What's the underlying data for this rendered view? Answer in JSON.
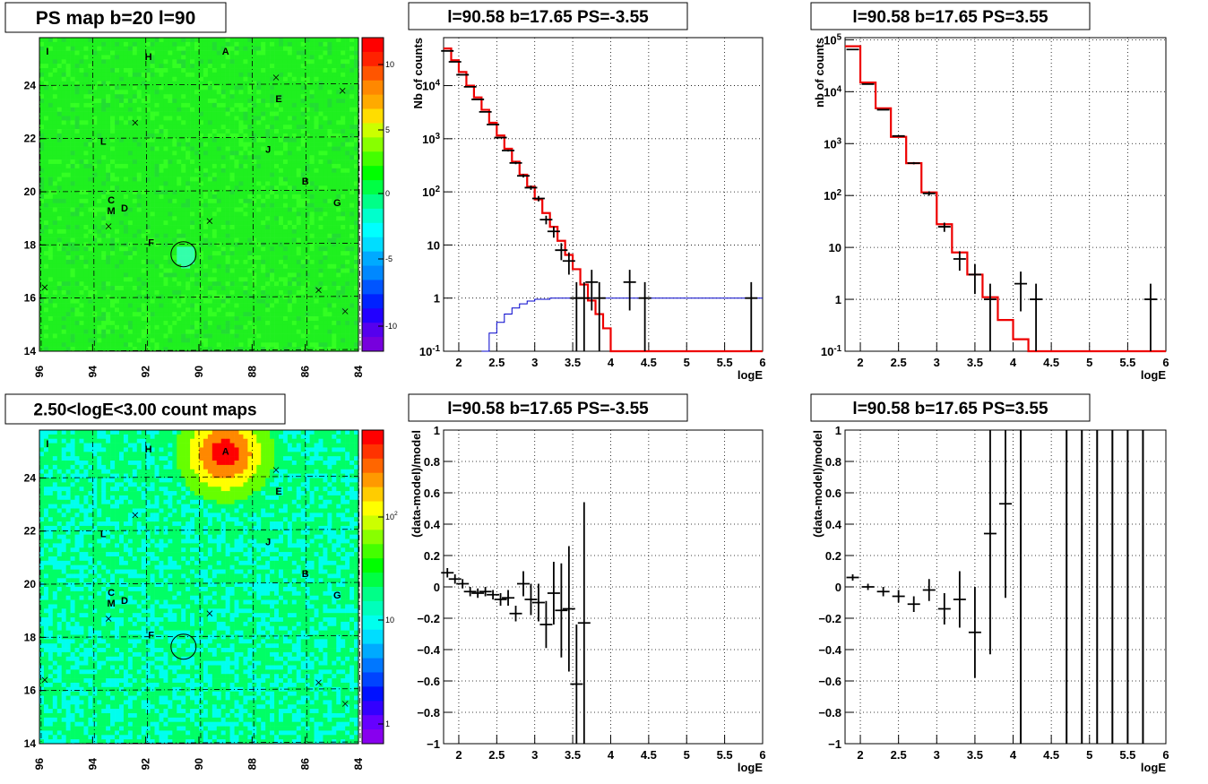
{
  "figure": {
    "panel_titles": [
      "PS map b=20 l=90",
      "l=90.58 b=17.65 PS=-3.55",
      "l=90.58 b=17.65 PS=3.55",
      "2.50<logE<3.00 count maps",
      "l=90.58 b=17.65 PS=-3.55",
      "l=90.58 b=17.65 PS=3.55"
    ]
  },
  "chart_data": [
    {
      "type": "heatmap",
      "title": "PS map b=20 l=90",
      "x_ticks": [
        "96",
        "94",
        "92",
        "90",
        "88",
        "86",
        "84"
      ],
      "y_ticks": [
        "14",
        "16",
        "18",
        "20",
        "22",
        "24"
      ],
      "xlim": [
        96,
        84
      ],
      "ylim": [
        14,
        25.8
      ],
      "colorbar_ticks": [
        "10",
        "5",
        "0",
        "-5",
        "-10"
      ],
      "colorbar_range": [
        -13,
        13
      ],
      "labels": [
        {
          "t": "I",
          "x": 95.7,
          "y": 25.3
        },
        {
          "t": "H",
          "x": 91.9,
          "y": 25.1
        },
        {
          "t": "A",
          "x": 89.0,
          "y": 25.3
        },
        {
          "t": "E",
          "x": 87.0,
          "y": 23.5
        },
        {
          "t": "L",
          "x": 93.6,
          "y": 21.9
        },
        {
          "t": "J",
          "x": 87.4,
          "y": 21.6
        },
        {
          "t": "B",
          "x": 86.0,
          "y": 20.4
        },
        {
          "t": "G",
          "x": 84.8,
          "y": 19.6
        },
        {
          "t": "C",
          "x": 93.3,
          "y": 19.7
        },
        {
          "t": "M",
          "x": 93.3,
          "y": 19.3
        },
        {
          "t": "D",
          "x": 92.8,
          "y": 19.4
        },
        {
          "t": "F",
          "x": 91.8,
          "y": 18.1
        }
      ],
      "crosses": [
        [
          87.1,
          24.3
        ],
        [
          92.4,
          22.6
        ],
        [
          89.6,
          18.9
        ],
        [
          93.4,
          18.7
        ],
        [
          85.5,
          16.3
        ],
        [
          84.5,
          15.5
        ],
        [
          95.8,
          16.4
        ],
        [
          84.6,
          23.8
        ]
      ],
      "circle": {
        "x": 90.58,
        "y": 17.65,
        "r": 0.5
      }
    },
    {
      "type": "line",
      "title": "l=90.58 b=17.65 PS=-3.55",
      "xlabel": "logE",
      "ylabel": "Nb of counts",
      "xlim": [
        1.8,
        6
      ],
      "ylim": [
        0.1,
        80000
      ],
      "log_y": true,
      "x_ticks": [
        "2",
        "2.5",
        "3",
        "3.5",
        "4",
        "4.5",
        "5",
        "5.5",
        "6"
      ],
      "y_ticks": [
        "10^{-1}",
        "1",
        "10",
        "10^{2}",
        "10^{3}",
        "10^{4}"
      ],
      "data_points": [
        {
          "x": 1.85,
          "y": 45000
        },
        {
          "x": 1.95,
          "y": 28000
        },
        {
          "x": 2.05,
          "y": 16000
        },
        {
          "x": 2.15,
          "y": 9500
        },
        {
          "x": 2.25,
          "y": 5500
        },
        {
          "x": 2.35,
          "y": 3200
        },
        {
          "x": 2.45,
          "y": 1850
        },
        {
          "x": 2.55,
          "y": 1050
        },
        {
          "x": 2.65,
          "y": 600
        },
        {
          "x": 2.75,
          "y": 350
        },
        {
          "x": 2.85,
          "y": 200
        },
        {
          "x": 2.95,
          "y": 120
        },
        {
          "x": 3.05,
          "y": 75
        },
        {
          "x": 3.15,
          "y": 30
        },
        {
          "x": 3.25,
          "y": 18
        },
        {
          "x": 3.35,
          "y": 8
        },
        {
          "x": 3.45,
          "y": 5
        },
        {
          "x": 3.55,
          "y": 1
        },
        {
          "x": 3.65,
          "y": 1
        },
        {
          "x": 3.75,
          "y": 2
        },
        {
          "x": 3.85,
          "y": 1
        },
        {
          "x": 4.25,
          "y": 2
        },
        {
          "x": 4.45,
          "y": 1
        },
        {
          "x": 5.85,
          "y": 1
        }
      ],
      "model_red": [
        [
          1.8,
          50000
        ],
        [
          1.9,
          30000
        ],
        [
          2.0,
          18000
        ],
        [
          2.1,
          10000
        ],
        [
          2.2,
          6000
        ],
        [
          2.3,
          3500
        ],
        [
          2.4,
          2000
        ],
        [
          2.5,
          1150
        ],
        [
          2.6,
          650
        ],
        [
          2.7,
          370
        ],
        [
          2.8,
          210
        ],
        [
          2.9,
          125
        ],
        [
          3.0,
          72
        ],
        [
          3.1,
          40
        ],
        [
          3.2,
          22
        ],
        [
          3.3,
          12
        ],
        [
          3.4,
          6.5
        ],
        [
          3.5,
          3.5
        ],
        [
          3.6,
          1.8
        ],
        [
          3.7,
          0.9
        ],
        [
          3.8,
          0.5
        ],
        [
          3.9,
          0.27
        ],
        [
          4.0,
          0.1
        ],
        [
          6.0,
          0.1
        ]
      ],
      "model_blue": [
        [
          2.3,
          0.1
        ],
        [
          2.4,
          0.22
        ],
        [
          2.5,
          0.35
        ],
        [
          2.6,
          0.5
        ],
        [
          2.7,
          0.65
        ],
        [
          2.8,
          0.78
        ],
        [
          2.9,
          0.88
        ],
        [
          3.0,
          0.95
        ],
        [
          3.2,
          1.0
        ],
        [
          6.0,
          1.0
        ]
      ]
    },
    {
      "type": "line",
      "title": "l=90.58 b=17.65 PS=3.55",
      "xlabel": "logE",
      "ylabel": "nb of counts",
      "xlim": [
        1.8,
        6
      ],
      "ylim": [
        0.1,
        110000
      ],
      "log_y": true,
      "x_ticks": [
        "2",
        "2.5",
        "3",
        "3.5",
        "4",
        "4.5",
        "5",
        "5.5",
        "6"
      ],
      "y_ticks": [
        "10^{-1}",
        "1",
        "10",
        "10^{2}",
        "10^{3}",
        "10^{4}",
        "10^{5}"
      ],
      "data_points": [
        {
          "x": 1.9,
          "y": 65000
        },
        {
          "x": 2.1,
          "y": 14000
        },
        {
          "x": 2.3,
          "y": 4500
        },
        {
          "x": 2.5,
          "y": 1400
        },
        {
          "x": 2.7,
          "y": 420
        },
        {
          "x": 2.9,
          "y": 110
        },
        {
          "x": 3.1,
          "y": 25
        },
        {
          "x": 3.3,
          "y": 6
        },
        {
          "x": 3.5,
          "y": 3
        },
        {
          "x": 3.7,
          "y": 1
        },
        {
          "x": 4.1,
          "y": 2
        },
        {
          "x": 4.3,
          "y": 1
        },
        {
          "x": 5.8,
          "y": 1
        }
      ],
      "model_red": [
        [
          1.8,
          75000
        ],
        [
          2.0,
          15000
        ],
        [
          2.2,
          4800
        ],
        [
          2.4,
          1350
        ],
        [
          2.6,
          420
        ],
        [
          2.8,
          115
        ],
        [
          3.0,
          28
        ],
        [
          3.2,
          8
        ],
        [
          3.4,
          3
        ],
        [
          3.6,
          1.1
        ],
        [
          3.8,
          0.4
        ],
        [
          4.0,
          0.17
        ],
        [
          4.2,
          0.1
        ],
        [
          6.0,
          0.1
        ]
      ]
    },
    {
      "type": "heatmap",
      "title": "2.50<logE<3.00 count maps",
      "x_ticks": [
        "96",
        "94",
        "92",
        "90",
        "88",
        "86",
        "84"
      ],
      "y_ticks": [
        "14",
        "16",
        "18",
        "20",
        "22",
        "24"
      ],
      "xlim": [
        96,
        84
      ],
      "ylim": [
        14,
        25.8
      ],
      "colorbar_ticks": [
        "10^{2}",
        "10",
        "1"
      ],
      "labels": [
        {
          "t": "I",
          "x": 95.7,
          "y": 25.3
        },
        {
          "t": "H",
          "x": 91.9,
          "y": 25.1
        },
        {
          "t": "A",
          "x": 89.0,
          "y": 25.0
        },
        {
          "t": "E",
          "x": 87.0,
          "y": 23.5
        },
        {
          "t": "L",
          "x": 93.6,
          "y": 21.9
        },
        {
          "t": "J",
          "x": 87.4,
          "y": 21.6
        },
        {
          "t": "B",
          "x": 86.0,
          "y": 20.4
        },
        {
          "t": "G",
          "x": 84.8,
          "y": 19.6
        },
        {
          "t": "C",
          "x": 93.3,
          "y": 19.7
        },
        {
          "t": "M",
          "x": 93.3,
          "y": 19.3
        },
        {
          "t": "D",
          "x": 92.8,
          "y": 19.4
        },
        {
          "t": "F",
          "x": 91.8,
          "y": 18.1
        }
      ],
      "crosses": [
        [
          87.1,
          24.3
        ],
        [
          92.4,
          22.6
        ],
        [
          89.6,
          18.9
        ],
        [
          93.4,
          18.7
        ],
        [
          85.5,
          16.3
        ],
        [
          84.5,
          15.5
        ],
        [
          95.8,
          16.4
        ]
      ],
      "circle": {
        "x": 90.58,
        "y": 17.65,
        "r": 0.5
      },
      "hotspot": {
        "x": 89.1,
        "y": 25.0
      }
    },
    {
      "type": "scatter",
      "title": "l=90.58 b=17.65 PS=-3.55",
      "xlabel": "logE",
      "ylabel": "(data-model)/model",
      "xlim": [
        1.8,
        6
      ],
      "ylim": [
        -1,
        1
      ],
      "x_ticks": [
        "2",
        "2.5",
        "3",
        "3.5",
        "4",
        "4.5",
        "5",
        "5.5",
        "6"
      ],
      "y_ticks": [
        "-1",
        "-0.8",
        "-0.6",
        "-0.4",
        "-0.2",
        "0",
        "0.2",
        "0.4",
        "0.6",
        "0.8",
        "1"
      ],
      "points": [
        {
          "x": 1.85,
          "y": 0.09,
          "e": 0.03
        },
        {
          "x": 1.95,
          "y": 0.05,
          "e": 0.03
        },
        {
          "x": 2.05,
          "y": 0.02,
          "e": 0.03
        },
        {
          "x": 2.15,
          "y": -0.03,
          "e": 0.03
        },
        {
          "x": 2.25,
          "y": -0.04,
          "e": 0.03
        },
        {
          "x": 2.35,
          "y": -0.03,
          "e": 0.03
        },
        {
          "x": 2.45,
          "y": -0.05,
          "e": 0.03
        },
        {
          "x": 2.55,
          "y": -0.08,
          "e": 0.04
        },
        {
          "x": 2.65,
          "y": -0.07,
          "e": 0.05
        },
        {
          "x": 2.75,
          "y": -0.17,
          "e": 0.05
        },
        {
          "x": 2.85,
          "y": 0.02,
          "e": 0.08
        },
        {
          "x": 2.95,
          "y": -0.08,
          "e": 0.1
        },
        {
          "x": 3.05,
          "y": -0.1,
          "e": 0.12
        },
        {
          "x": 3.15,
          "y": -0.24,
          "e": 0.15
        },
        {
          "x": 3.25,
          "y": -0.04,
          "e": 0.2
        },
        {
          "x": 3.35,
          "y": -0.15,
          "e": 0.3
        },
        {
          "x": 3.45,
          "y": -0.14,
          "e": 0.4
        },
        {
          "x": 3.55,
          "y": -0.62,
          "e": 0.38
        },
        {
          "x": 3.65,
          "y": -0.23,
          "e": 0.77
        }
      ]
    },
    {
      "type": "scatter",
      "title": "l=90.58 b=17.65 PS=3.55",
      "xlabel": "logE",
      "ylabel": "(data-model)/model",
      "xlim": [
        1.8,
        6
      ],
      "ylim": [
        -1,
        1
      ],
      "x_ticks": [
        "2",
        "2.5",
        "3",
        "3.5",
        "4",
        "4.5",
        "5",
        "5.5",
        "6"
      ],
      "y_ticks": [
        "-1",
        "-0.8",
        "-0.6",
        "-0.4",
        "-0.2",
        "0",
        "0.2",
        "0.4",
        "0.6",
        "0.8",
        "1"
      ],
      "points": [
        {
          "x": 1.9,
          "y": 0.06,
          "e": 0.02
        },
        {
          "x": 2.1,
          "y": 0.0,
          "e": 0.02
        },
        {
          "x": 2.3,
          "y": -0.03,
          "e": 0.03
        },
        {
          "x": 2.5,
          "y": -0.06,
          "e": 0.04
        },
        {
          "x": 2.7,
          "y": -0.11,
          "e": 0.05
        },
        {
          "x": 2.9,
          "y": -0.02,
          "e": 0.07
        },
        {
          "x": 3.1,
          "y": -0.14,
          "e": 0.1
        },
        {
          "x": 3.3,
          "y": -0.08,
          "e": 0.18
        },
        {
          "x": 3.5,
          "y": -0.29,
          "e": 0.29
        },
        {
          "x": 3.7,
          "y": 0.34,
          "e": 0.77
        },
        {
          "x": 3.9,
          "y": 0.53,
          "e": 0.6
        }
      ],
      "full_bars": [
        4.1,
        4.7,
        4.9,
        5.1,
        5.3,
        5.5,
        5.7
      ]
    }
  ]
}
